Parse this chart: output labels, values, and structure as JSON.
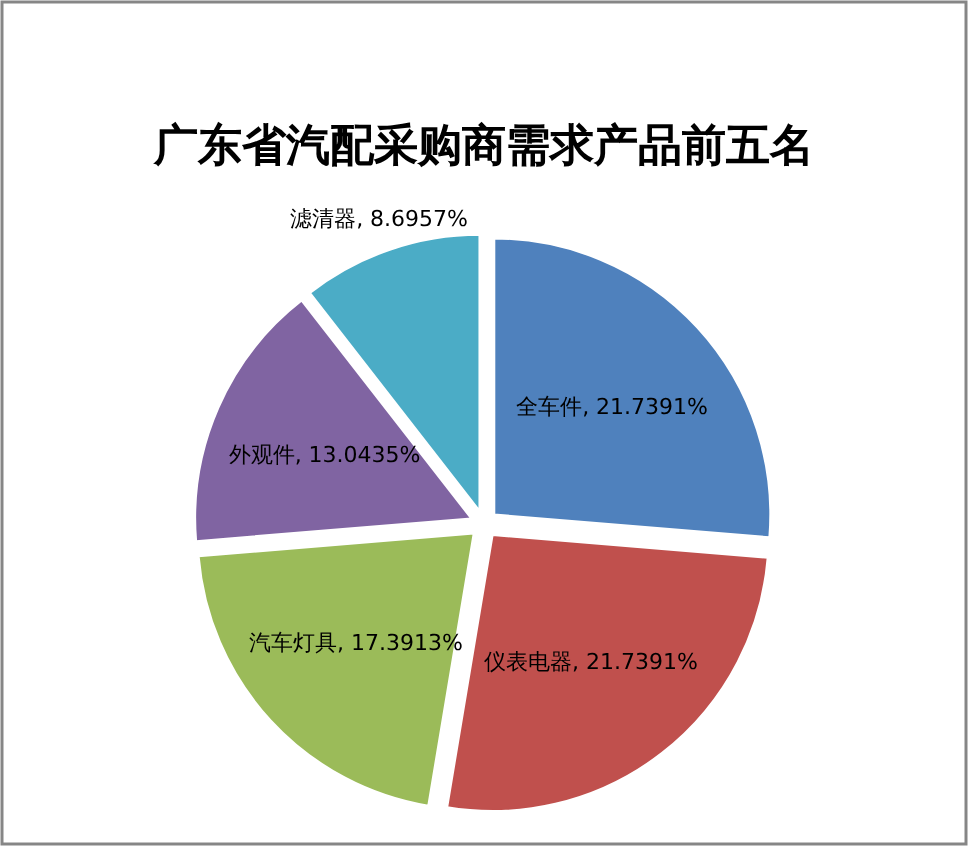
{
  "chart_data": {
    "type": "pie",
    "title": "广东省汽配采购商需求产品前五名",
    "categories": [
      "全车件",
      "仪表电器",
      "汽车灯具",
      "外观件",
      "滤清器"
    ],
    "values": [
      21.7391,
      21.7391,
      17.3913,
      13.0435,
      8.6957
    ],
    "colors": [
      "#4f81bd",
      "#c0504d",
      "#9bbb59",
      "#8064a2",
      "#4bacc6"
    ],
    "value_labels": [
      ", 21.7391%",
      ", 21.7391%",
      ", 17.3913%",
      ", 13.0435%",
      ", 8.6957%"
    ]
  }
}
